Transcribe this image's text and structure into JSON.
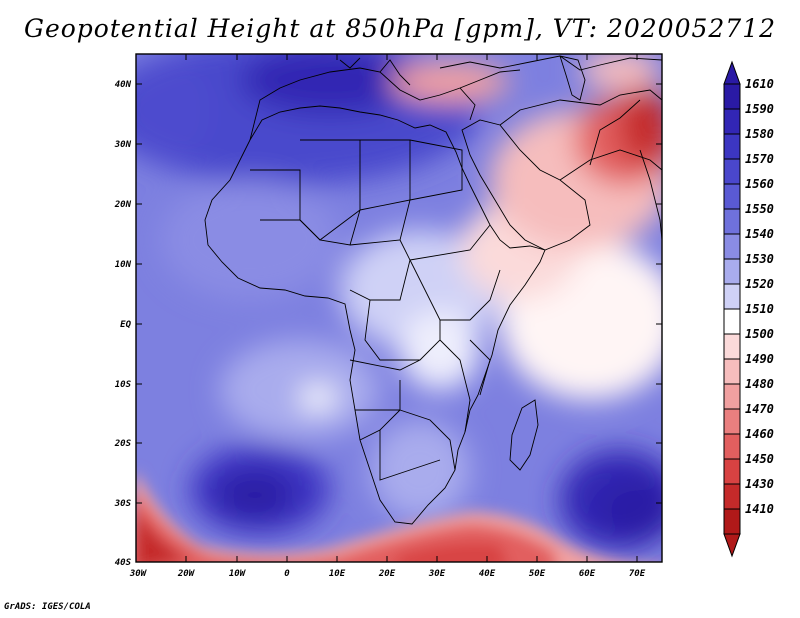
{
  "title": "Geopotential Height at 850hPa [gpm], VT: 2020052712",
  "footer": "GrADS: IGES/COLA",
  "map": {
    "lat_labels": [
      "40N",
      "30N",
      "20N",
      "10N",
      "EQ",
      "10S",
      "20S",
      "30S",
      "40S"
    ],
    "lon_labels": [
      "30W",
      "20W",
      "10W",
      "0",
      "10E",
      "20E",
      "30E",
      "40E",
      "50E",
      "60E",
      "70E"
    ],
    "lat_range": [
      -40,
      45
    ],
    "lon_range": [
      -30,
      75
    ]
  },
  "colorbar": {
    "levels": [
      "1610",
      "1590",
      "1580",
      "1570",
      "1560",
      "1550",
      "1540",
      "1530",
      "1520",
      "1510",
      "1500",
      "1490",
      "1480",
      "1470",
      "1460",
      "1450",
      "1430",
      "1410"
    ],
    "colors": [
      "#2a1aa5",
      "#3226b5",
      "#3c36c2",
      "#4a47cc",
      "#5a5ad4",
      "#6f71dc",
      "#8a8ce4",
      "#a9aced",
      "#cfd1f6",
      "#ffffff",
      "#fbdada",
      "#f6bdbd",
      "#f1a0a0",
      "#ea7f7f",
      "#e25f5f",
      "#d84242",
      "#c52a2a",
      "#b01919"
    ]
  }
}
